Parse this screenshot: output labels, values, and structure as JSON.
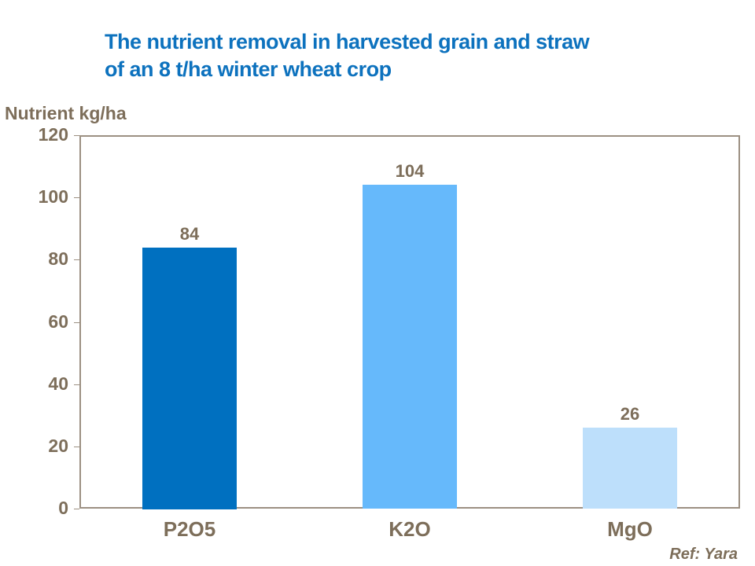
{
  "title": {
    "lines": [
      "The nutrient removal in harvested grain and straw",
      "of an 8 t/ha winter wheat crop"
    ]
  },
  "axis_label": "Nutrient kg/ha",
  "footer": {
    "ref": "Ref: Yara"
  },
  "colors": {
    "title": "#0D72BE",
    "text": "#7D6E5A",
    "grid": "#B5ACA1",
    "border": "#9C9082",
    "bars": [
      "#0070C0",
      "#66B9FB",
      "#BDDFFB"
    ]
  },
  "chart_data": {
    "type": "bar",
    "categories": [
      "P2O5",
      "K2O",
      "MgO"
    ],
    "values": [
      84,
      104,
      26
    ],
    "data_labels": [
      "84",
      "104",
      "26"
    ],
    "title": "The nutrient removal in harvested grain and straw of an 8 t/ha winter wheat crop",
    "xlabel": "",
    "ylabel": "Nutrient kg/ha",
    "ylim": [
      0,
      120
    ],
    "yticks": [
      0,
      20,
      40,
      60,
      80,
      100,
      120
    ],
    "grid": true,
    "legend": false,
    "bar_colors": [
      "#0070C0",
      "#66B9FB",
      "#BDDFFB"
    ]
  }
}
